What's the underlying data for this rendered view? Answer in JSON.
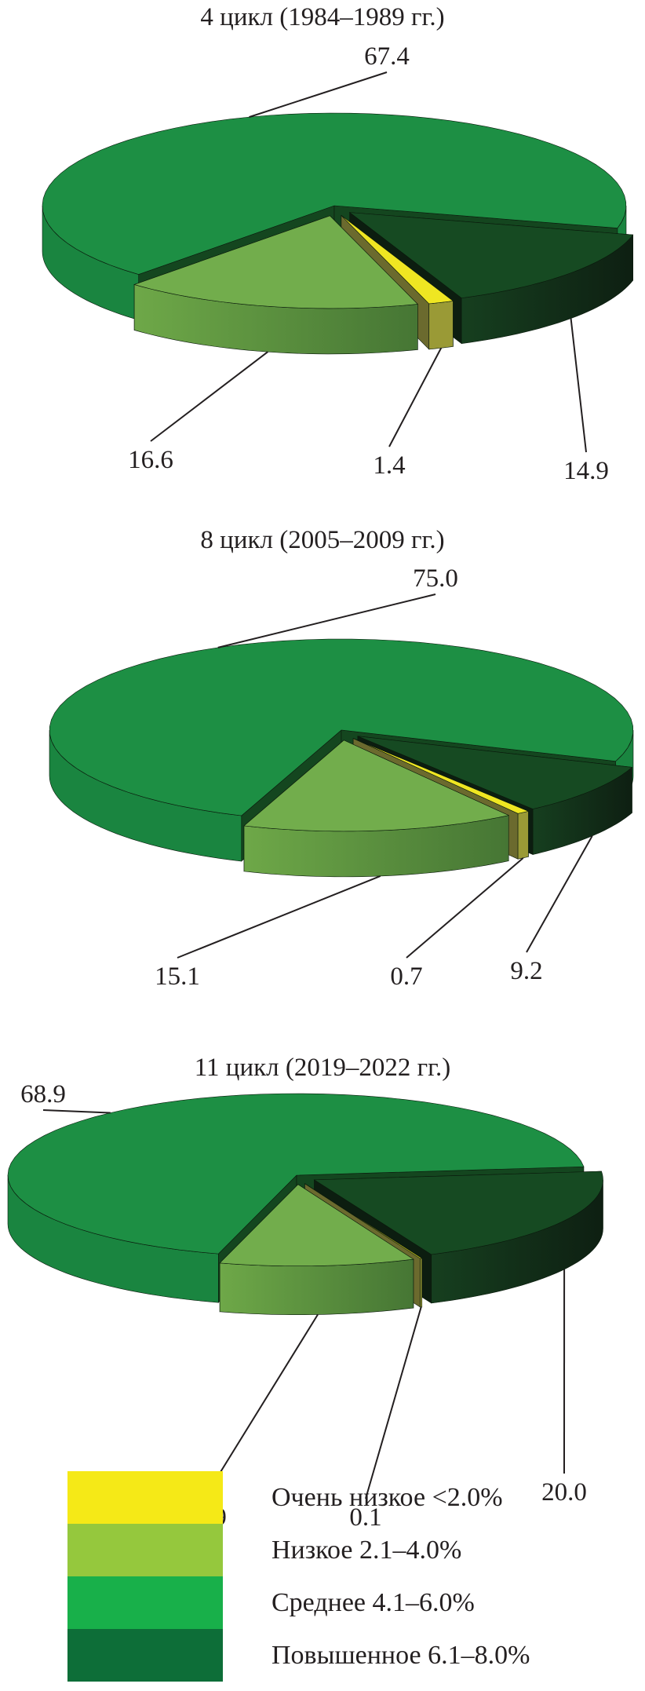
{
  "chart_data": [
    {
      "type": "pie",
      "title": "4 цикл (1984–1989 гг.)",
      "categories": [
        "Очень низкое <2.0%",
        "Низкое 2.1–4.0%",
        "Среднее 4.1–6.0%",
        "Повышенное 6.1–8.0%"
      ],
      "values": [
        1.4,
        16.6,
        67.4,
        14.9
      ],
      "labels": [
        "1.4",
        "16.6",
        "67.4",
        "14.9"
      ]
    },
    {
      "type": "pie",
      "title": "8 цикл (2005–2009 гг.)",
      "categories": [
        "Очень низкое <2.0%",
        "Низкое 2.1–4.0%",
        "Среднее 4.1–6.0%",
        "Повышенное 6.1–8.0%"
      ],
      "values": [
        0.7,
        15.1,
        75.0,
        9.2
      ],
      "labels": [
        "0.7",
        "15.1",
        "75.0",
        "9.2"
      ]
    },
    {
      "type": "pie",
      "title": "11 цикл (2019–2022 гг.)",
      "categories": [
        "Очень низкое <2.0%",
        "Низкое 2.1–4.0%",
        "Среднее 4.1–6.0%",
        "Повышенное 6.1–8.0%"
      ],
      "values": [
        0.1,
        10.9,
        68.9,
        20.0
      ],
      "labels": [
        "0.1",
        "10.9",
        "68.9",
        "20.0"
      ]
    }
  ],
  "legend": {
    "placement": "bottom",
    "items": [
      {
        "label": "Очень низкое <2.0%",
        "color": "#f5e917"
      },
      {
        "label": "Низкое 2.1–4.0%",
        "color": "#95c83d"
      },
      {
        "label": "Среднее 4.1–6.0%",
        "color": "#18b04a"
      },
      {
        "label": "Повышенное 6.1–8.0%",
        "color": "#0d6e38"
      }
    ]
  }
}
